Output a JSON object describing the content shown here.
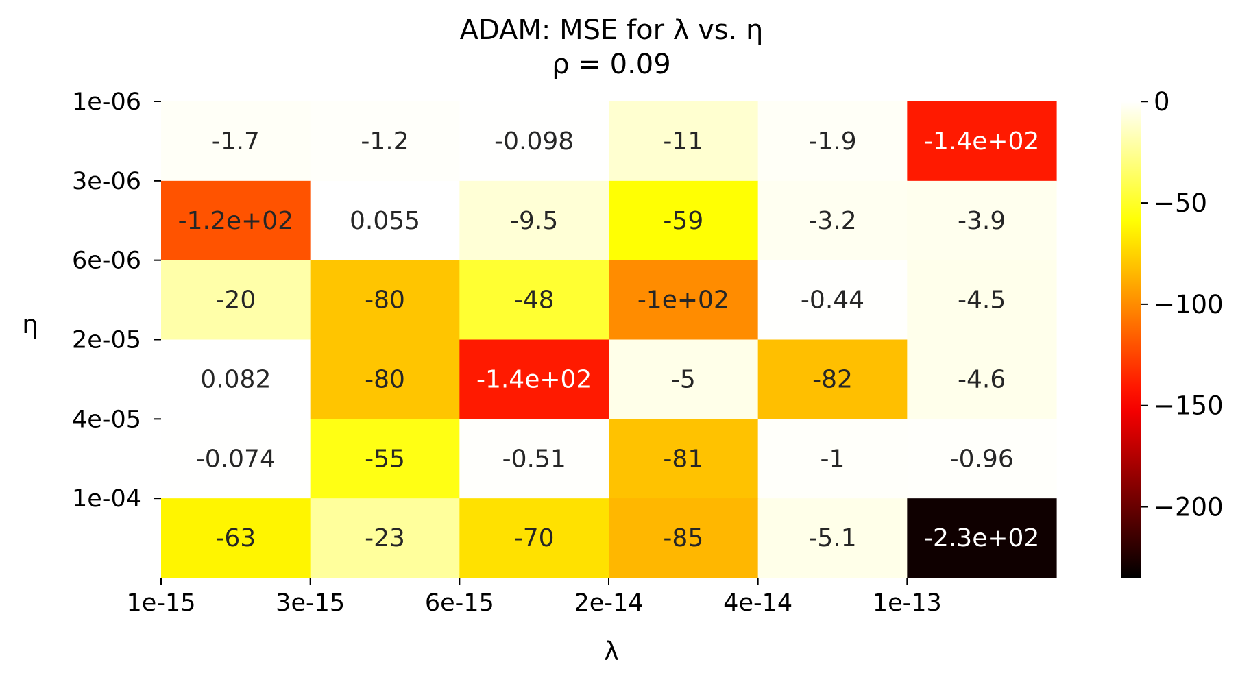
{
  "chart_data": {
    "type": "heatmap",
    "title": "ADAM: MSE for λ vs. η",
    "subtitle": "ρ = 0.09",
    "xlabel": "λ",
    "ylabel": "η",
    "x_tick_labels": [
      "1e-15",
      "3e-15",
      "6e-15",
      "2e-14",
      "4e-14",
      "1e-13"
    ],
    "y_tick_labels": [
      "1e-06",
      "3e-06",
      "6e-06",
      "2e-05",
      "4e-05",
      "1e-04"
    ],
    "values": [
      [
        -1.7,
        -1.2,
        -0.098,
        -11,
        -1.9,
        -140
      ],
      [
        -120,
        0.055,
        -9.5,
        -59,
        -3.2,
        -3.9
      ],
      [
        -20,
        -80,
        -48,
        -100,
        -0.44,
        -4.5
      ],
      [
        0.082,
        -80,
        -140,
        -5,
        -82,
        -4.6
      ],
      [
        -0.074,
        -55,
        -0.51,
        -81,
        -1,
        -0.96
      ],
      [
        -63,
        -23,
        -70,
        -85,
        -5.1,
        -230
      ]
    ],
    "annotations": [
      [
        "-1.7",
        "-1.2",
        "-0.098",
        "-11",
        "-1.9",
        "-1.4e+02"
      ],
      [
        "-1.2e+02",
        "0.055",
        "-9.5",
        "-59",
        "-3.2",
        "-3.9"
      ],
      [
        "-20",
        "-80",
        "-48",
        "-1e+02",
        "-0.44",
        "-4.5"
      ],
      [
        "0.082",
        "-80",
        "-1.4e+02",
        "-5",
        "-82",
        "-4.6"
      ],
      [
        "-0.074",
        "-55",
        "-0.51",
        "-81",
        "-1",
        "-0.96"
      ],
      [
        "-63",
        "-23",
        "-70",
        "-85",
        "-5.1",
        "-2.3e+02"
      ]
    ],
    "colormap": "hot",
    "vmin": -235,
    "vmax": 0.082,
    "colorbar_ticks": [
      0,
      -50,
      -100,
      -150,
      -200
    ],
    "colorbar_tick_labels": [
      "0",
      "−50",
      "−100",
      "−150",
      "−200"
    ]
  }
}
